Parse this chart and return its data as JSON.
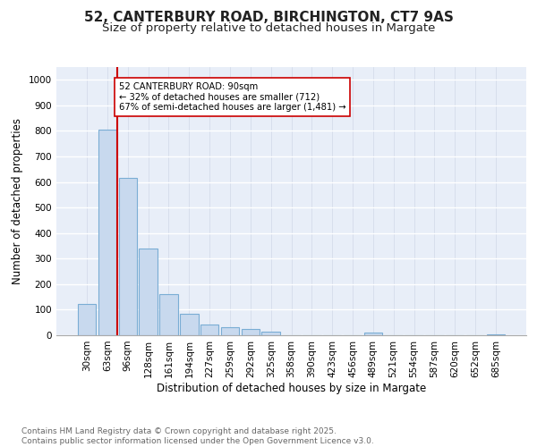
{
  "title": "52, CANTERBURY ROAD, BIRCHINGTON, CT7 9AS",
  "subtitle": "Size of property relative to detached houses in Margate",
  "xlabel": "Distribution of detached houses by size in Margate",
  "ylabel": "Number of detached properties",
  "bar_color": "#c8d9ee",
  "bar_edge_color": "#7aadd4",
  "background_color": "#e8eef8",
  "grid_color": "#d0d8e8",
  "categories": [
    "30sqm",
    "63sqm",
    "96sqm",
    "128sqm",
    "161sqm",
    "194sqm",
    "227sqm",
    "259sqm",
    "292sqm",
    "325sqm",
    "358sqm",
    "390sqm",
    "423sqm",
    "456sqm",
    "489sqm",
    "521sqm",
    "554sqm",
    "587sqm",
    "620sqm",
    "652sqm",
    "685sqm"
  ],
  "values": [
    122,
    805,
    615,
    338,
    160,
    83,
    42,
    30,
    25,
    15,
    0,
    0,
    0,
    0,
    10,
    0,
    0,
    0,
    0,
    0,
    5
  ],
  "vline_color": "#cc0000",
  "annotation_text": "52 CANTERBURY ROAD: 90sqm\n← 32% of detached houses are smaller (712)\n67% of semi-detached houses are larger (1,481) →",
  "annotation_box_color": "#ffffff",
  "annotation_box_edge": "#cc0000",
  "ylim": [
    0,
    1050
  ],
  "yticks": [
    0,
    100,
    200,
    300,
    400,
    500,
    600,
    700,
    800,
    900,
    1000
  ],
  "footer_text": "Contains HM Land Registry data © Crown copyright and database right 2025.\nContains public sector information licensed under the Open Government Licence v3.0.",
  "title_fontsize": 11,
  "subtitle_fontsize": 9.5,
  "ylabel_fontsize": 8.5,
  "xlabel_fontsize": 8.5,
  "tick_fontsize": 7.5,
  "footer_fontsize": 6.5
}
